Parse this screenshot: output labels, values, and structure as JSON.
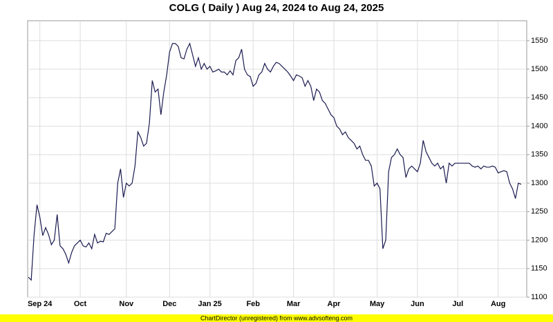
{
  "chart_data": {
    "type": "line",
    "title": "COLG ( Daily ) Aug 24, 2024 to Aug 24, 2025",
    "footer": "ChartDirector (unregistered) from www.advsofteng.com",
    "categories": [
      null,
      null,
      null,
      null,
      "Sep 24",
      null,
      null,
      null,
      null,
      null,
      null,
      null,
      null,
      null,
      null,
      null,
      null,
      null,
      "Oct",
      null,
      null,
      null,
      null,
      null,
      null,
      null,
      null,
      null,
      null,
      null,
      null,
      null,
      null,
      null,
      "Nov",
      null,
      null,
      null,
      null,
      null,
      null,
      null,
      null,
      null,
      null,
      null,
      null,
      null,
      null,
      "Dec",
      null,
      null,
      null,
      null,
      null,
      null,
      null,
      null,
      null,
      null,
      null,
      null,
      null,
      "Jan 25",
      null,
      null,
      null,
      null,
      null,
      null,
      null,
      null,
      null,
      null,
      null,
      null,
      null,
      null,
      "Feb",
      null,
      null,
      null,
      null,
      null,
      null,
      null,
      null,
      null,
      null,
      null,
      null,
      null,
      "Mar",
      null,
      null,
      null,
      null,
      null,
      null,
      null,
      null,
      null,
      null,
      null,
      null,
      null,
      "Apr",
      null,
      null,
      null,
      null,
      null,
      null,
      null,
      null,
      null,
      null,
      null,
      null,
      null,
      null,
      "May",
      null,
      null,
      null,
      null,
      null,
      null,
      null,
      null,
      null,
      null,
      null,
      null,
      null,
      "Jun",
      null,
      null,
      null,
      null,
      null,
      null,
      null,
      null,
      null,
      null,
      null,
      null,
      null,
      "Jul",
      null,
      null,
      null,
      null,
      null,
      null,
      null,
      null,
      null,
      null,
      null,
      null,
      null,
      "Aug",
      null,
      null,
      null,
      null,
      null,
      null,
      null,
      null
    ],
    "values": [
      1135,
      1130,
      1210,
      1262,
      1240,
      1208,
      1222,
      1210,
      1192,
      1200,
      1245,
      1190,
      1185,
      1175,
      1160,
      1178,
      1190,
      1195,
      1200,
      1190,
      1188,
      1195,
      1185,
      1210,
      1195,
      1198,
      1197,
      1212,
      1210,
      1215,
      1220,
      1300,
      1325,
      1275,
      1300,
      1295,
      1300,
      1330,
      1390,
      1380,
      1365,
      1370,
      1405,
      1480,
      1460,
      1465,
      1420,
      1460,
      1490,
      1530,
      1545,
      1545,
      1540,
      1520,
      1518,
      1535,
      1545,
      1525,
      1505,
      1520,
      1500,
      1510,
      1500,
      1505,
      1495,
      1497,
      1500,
      1495,
      1495,
      1490,
      1497,
      1490,
      1515,
      1520,
      1535,
      1500,
      1490,
      1487,
      1470,
      1475,
      1490,
      1495,
      1510,
      1500,
      1495,
      1505,
      1512,
      1510,
      1505,
      1500,
      1495,
      1488,
      1480,
      1490,
      1488,
      1485,
      1470,
      1480,
      1470,
      1445,
      1465,
      1460,
      1445,
      1440,
      1430,
      1420,
      1415,
      1400,
      1395,
      1385,
      1390,
      1380,
      1375,
      1370,
      1360,
      1365,
      1350,
      1340,
      1340,
      1330,
      1295,
      1300,
      1290,
      1185,
      1200,
      1320,
      1345,
      1350,
      1360,
      1350,
      1345,
      1310,
      1325,
      1330,
      1325,
      1320,
      1335,
      1375,
      1355,
      1345,
      1335,
      1330,
      1335,
      1325,
      1330,
      1300,
      1335,
      1330,
      1335,
      1335,
      1335,
      1335,
      1335,
      1335,
      1330,
      1328,
      1330,
      1325,
      1330,
      1328,
      1328,
      1330,
      1328,
      1318,
      1320,
      1322,
      1320,
      1300,
      1290,
      1273,
      1300,
      1298
    ],
    "color": "#1a1a50",
    "ylim": [
      1100,
      1585
    ],
    "yticks": [
      1100,
      1150,
      1200,
      1250,
      1300,
      1350,
      1400,
      1450,
      1500,
      1550
    ],
    "grid": true
  }
}
